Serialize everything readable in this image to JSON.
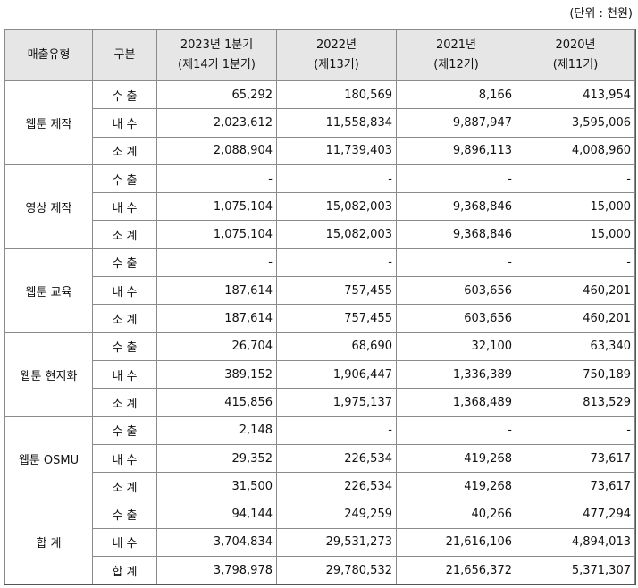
{
  "unit": "(단위 : 천원)",
  "table": {
    "header": [
      {
        "lines": [
          "매출유형"
        ]
      },
      {
        "lines": [
          "구분"
        ]
      },
      {
        "lines": [
          "2023년 1분기",
          "(제14기 1분기)"
        ]
      },
      {
        "lines": [
          "2022년",
          "(제13기)"
        ]
      },
      {
        "lines": [
          "2021년",
          "(제12기)"
        ]
      },
      {
        "lines": [
          "2020년",
          "(제11기)"
        ]
      }
    ],
    "groups": [
      {
        "name": "웹툰 제작",
        "rows": [
          {
            "label": "수 출",
            "cells": [
              "65,292",
              "180,569",
              "8,166",
              "413,954"
            ]
          },
          {
            "label": "내 수",
            "cells": [
              "2,023,612",
              "11,558,834",
              "9,887,947",
              "3,595,006"
            ]
          },
          {
            "label": "소 계",
            "cells": [
              "2,088,904",
              "11,739,403",
              "9,896,113",
              "4,008,960"
            ]
          }
        ]
      },
      {
        "name": "영상 제작",
        "rows": [
          {
            "label": "수 출",
            "cells": [
              "-",
              "-",
              "-",
              "-"
            ]
          },
          {
            "label": "내 수",
            "cells": [
              "1,075,104",
              "15,082,003",
              "9,368,846",
              "15,000"
            ]
          },
          {
            "label": "소 계",
            "cells": [
              "1,075,104",
              "15,082,003",
              "9,368,846",
              "15,000"
            ]
          }
        ]
      },
      {
        "name": "웹툰 교육",
        "rows": [
          {
            "label": "수 출",
            "cells": [
              "-",
              "-",
              "-",
              "-"
            ]
          },
          {
            "label": "내 수",
            "cells": [
              "187,614",
              "757,455",
              "603,656",
              "460,201"
            ]
          },
          {
            "label": "소 계",
            "cells": [
              "187,614",
              "757,455",
              "603,656",
              "460,201"
            ]
          }
        ]
      },
      {
        "name": "웹툰 현지화",
        "rows": [
          {
            "label": "수 출",
            "cells": [
              "26,704",
              "68,690",
              "32,100",
              "63,340"
            ]
          },
          {
            "label": "내 수",
            "cells": [
              "389,152",
              "1,906,447",
              "1,336,389",
              "750,189"
            ]
          },
          {
            "label": "소 계",
            "cells": [
              "415,856",
              "1,975,137",
              "1,368,489",
              "813,529"
            ]
          }
        ]
      },
      {
        "name": "웹툰 OSMU",
        "rows": [
          {
            "label": "수 출",
            "cells": [
              "2,148",
              "-",
              "-",
              "-"
            ]
          },
          {
            "label": "내 수",
            "cells": [
              "29,352",
              "226,534",
              "419,268",
              "73,617"
            ]
          },
          {
            "label": "소 계",
            "cells": [
              "31,500",
              "226,534",
              "419,268",
              "73,617"
            ]
          }
        ]
      },
      {
        "name": "합 계",
        "rows": [
          {
            "label": "수 출",
            "cells": [
              "94,144",
              "249,259",
              "40,266",
              "477,294"
            ]
          },
          {
            "label": "내 수",
            "cells": [
              "3,704,834",
              "29,531,273",
              "21,616,106",
              "4,894,013"
            ]
          },
          {
            "label": "합 계",
            "cells": [
              "3,798,978",
              "29,780,532",
              "21,656,372",
              "5,371,307"
            ]
          }
        ]
      }
    ]
  }
}
